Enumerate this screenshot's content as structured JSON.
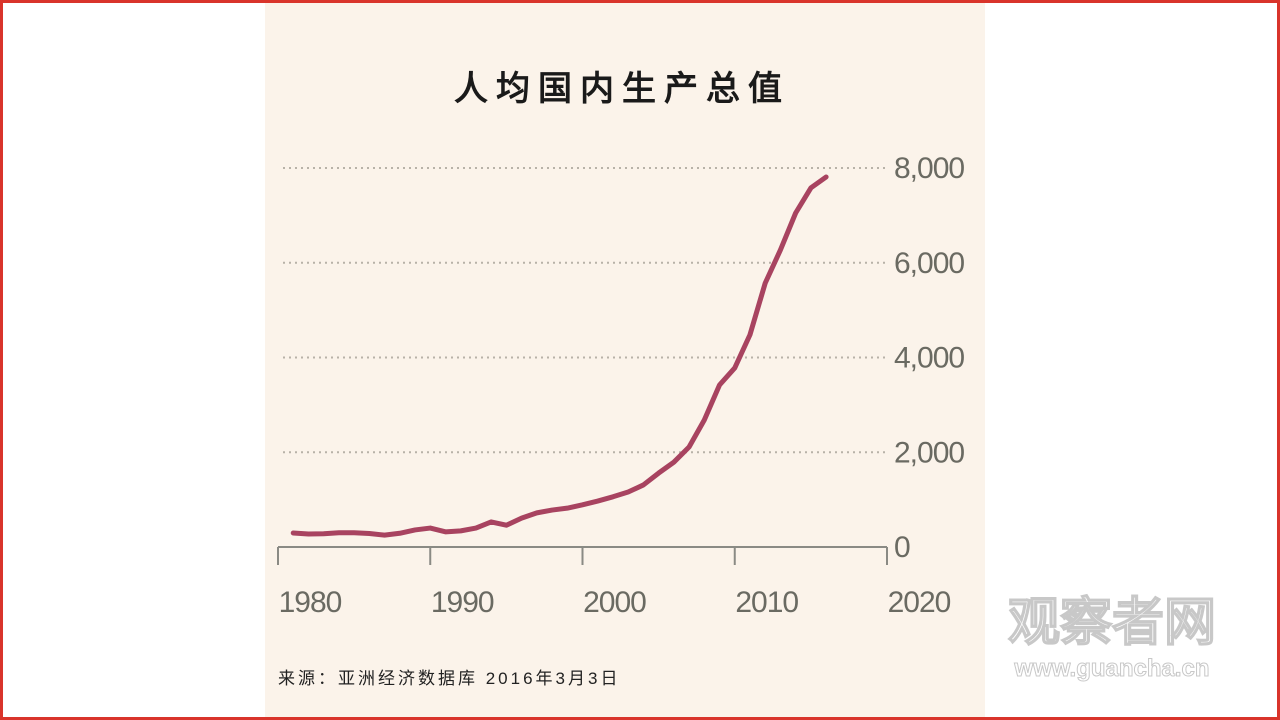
{
  "chart_data": {
    "type": "line",
    "title": "人均国内生产总值",
    "source": "来源：亚洲经济数据库 2016年3月3日",
    "watermark": "观察者网",
    "watermark_url": "www.guancha.cn",
    "x": [
      1981,
      1982,
      1983,
      1984,
      1985,
      1986,
      1987,
      1988,
      1989,
      1990,
      1991,
      1992,
      1993,
      1994,
      1995,
      1996,
      1997,
      1998,
      1999,
      2000,
      2001,
      2002,
      2003,
      2004,
      2005,
      2006,
      2007,
      2008,
      2009,
      2010,
      2011,
      2012,
      2013,
      2014,
      2015,
      2016
    ],
    "series": [
      {
        "name": "人均国内生产总值",
        "color": "#a84360",
        "values": [
          295,
          275,
          280,
          300,
          300,
          285,
          250,
          290,
          360,
          400,
          320,
          340,
          400,
          530,
          460,
          610,
          720,
          780,
          820,
          890,
          970,
          1060,
          1160,
          1310,
          1560,
          1790,
          2110,
          2680,
          3420,
          3780,
          4480,
          5570,
          6270,
          7050,
          7580,
          7810
        ]
      }
    ],
    "xlim": [
      1980,
      2020
    ],
    "xticks": [
      1980,
      1990,
      2000,
      2010,
      2020
    ],
    "ylim": [
      0,
      8000
    ],
    "yticks": [
      0,
      {
        "value": 2000,
        "label": "2,000"
      },
      {
        "value": 4000,
        "label": "4,000"
      },
      {
        "value": 6000,
        "label": "6,000"
      },
      {
        "value": 8000,
        "label": "8,000"
      }
    ],
    "grid": true
  }
}
